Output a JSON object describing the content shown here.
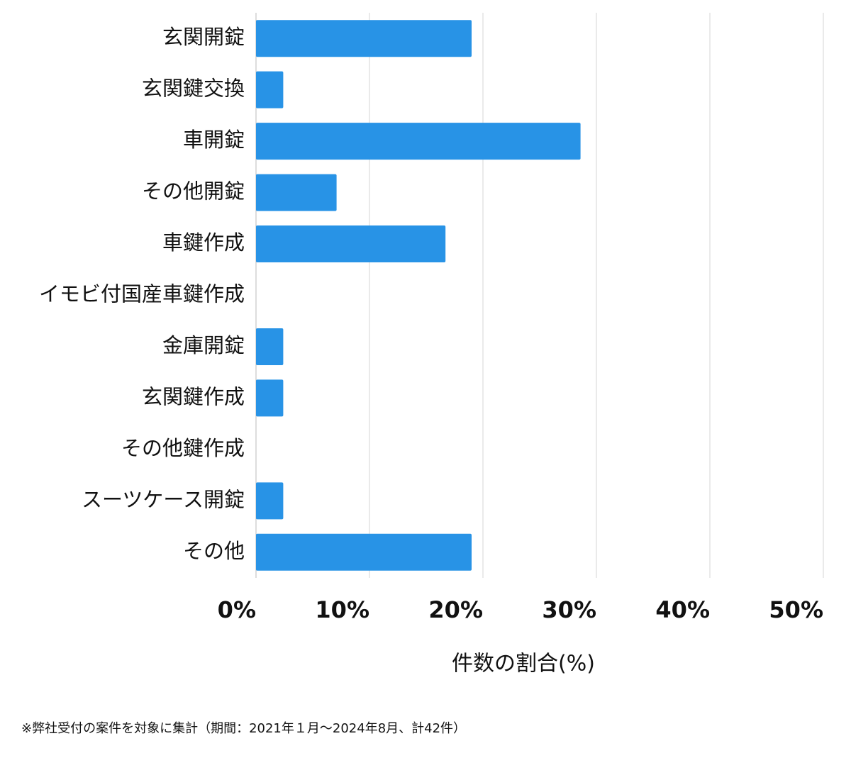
{
  "chart_data": {
    "type": "barh",
    "categories": [
      "玄関開錠",
      "玄関鍵交換",
      "車開錠",
      "その他開錠",
      "車鍵作成",
      "イモビ付国産車鍵作成",
      "金庫開錠",
      "玄関鍵作成",
      "その他鍵作成",
      "スーツケース開錠",
      "その他"
    ],
    "values": [
      19,
      2.4,
      28.6,
      7.1,
      16.7,
      0,
      2.4,
      2.4,
      0,
      2.4,
      19
    ],
    "color": "#2893e6",
    "xlim": [
      0,
      50
    ],
    "xticks": [
      {
        "value": 0,
        "label": "0%"
      },
      {
        "value": 10,
        "label": "10%"
      },
      {
        "value": 20,
        "label": "20%"
      },
      {
        "value": 30,
        "label": "30%"
      },
      {
        "value": 40,
        "label": "40%"
      },
      {
        "value": 50,
        "label": "50%"
      }
    ],
    "x_label": "件数の割合(%)",
    "grid": true,
    "note": "※弊社受付の案件を対象に集計（期間：2021年１月〜2024年8月、計42件）"
  }
}
